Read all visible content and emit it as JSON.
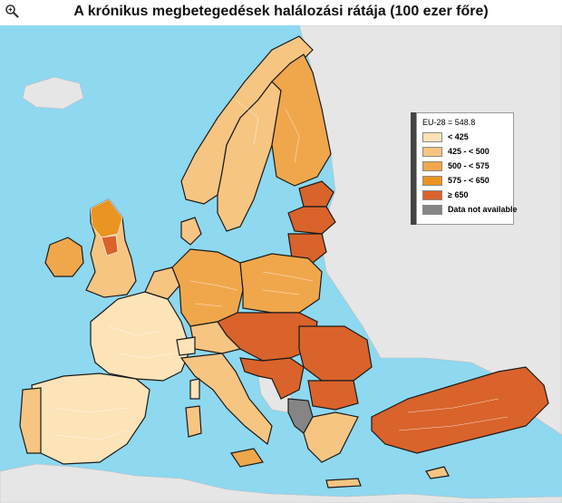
{
  "header": {
    "title": "A krónikus megbetegedések halálozási rátája (100 ezer főre)",
    "zoom_icon": "magnifier-zoom-icon"
  },
  "legend": {
    "reference": "EU-28 = 548.8",
    "classes": [
      {
        "label": "< 425",
        "color": "#fde3b8"
      },
      {
        "label": "425 - < 500",
        "color": "#f7c582"
      },
      {
        "label": "500 - < 575",
        "color": "#f0a74b"
      },
      {
        "label": "575 - < 650",
        "color": "#ea9422"
      },
      {
        "label": "≥ 650",
        "color": "#d9632b"
      },
      {
        "label": "Data not available",
        "color": "#858585"
      }
    ]
  },
  "colors": {
    "sea": "#8ed8f0",
    "non_eu_land": "#e6e6e6",
    "national_border": "#1a1a1a",
    "regional_border": "#ffffff"
  }
}
